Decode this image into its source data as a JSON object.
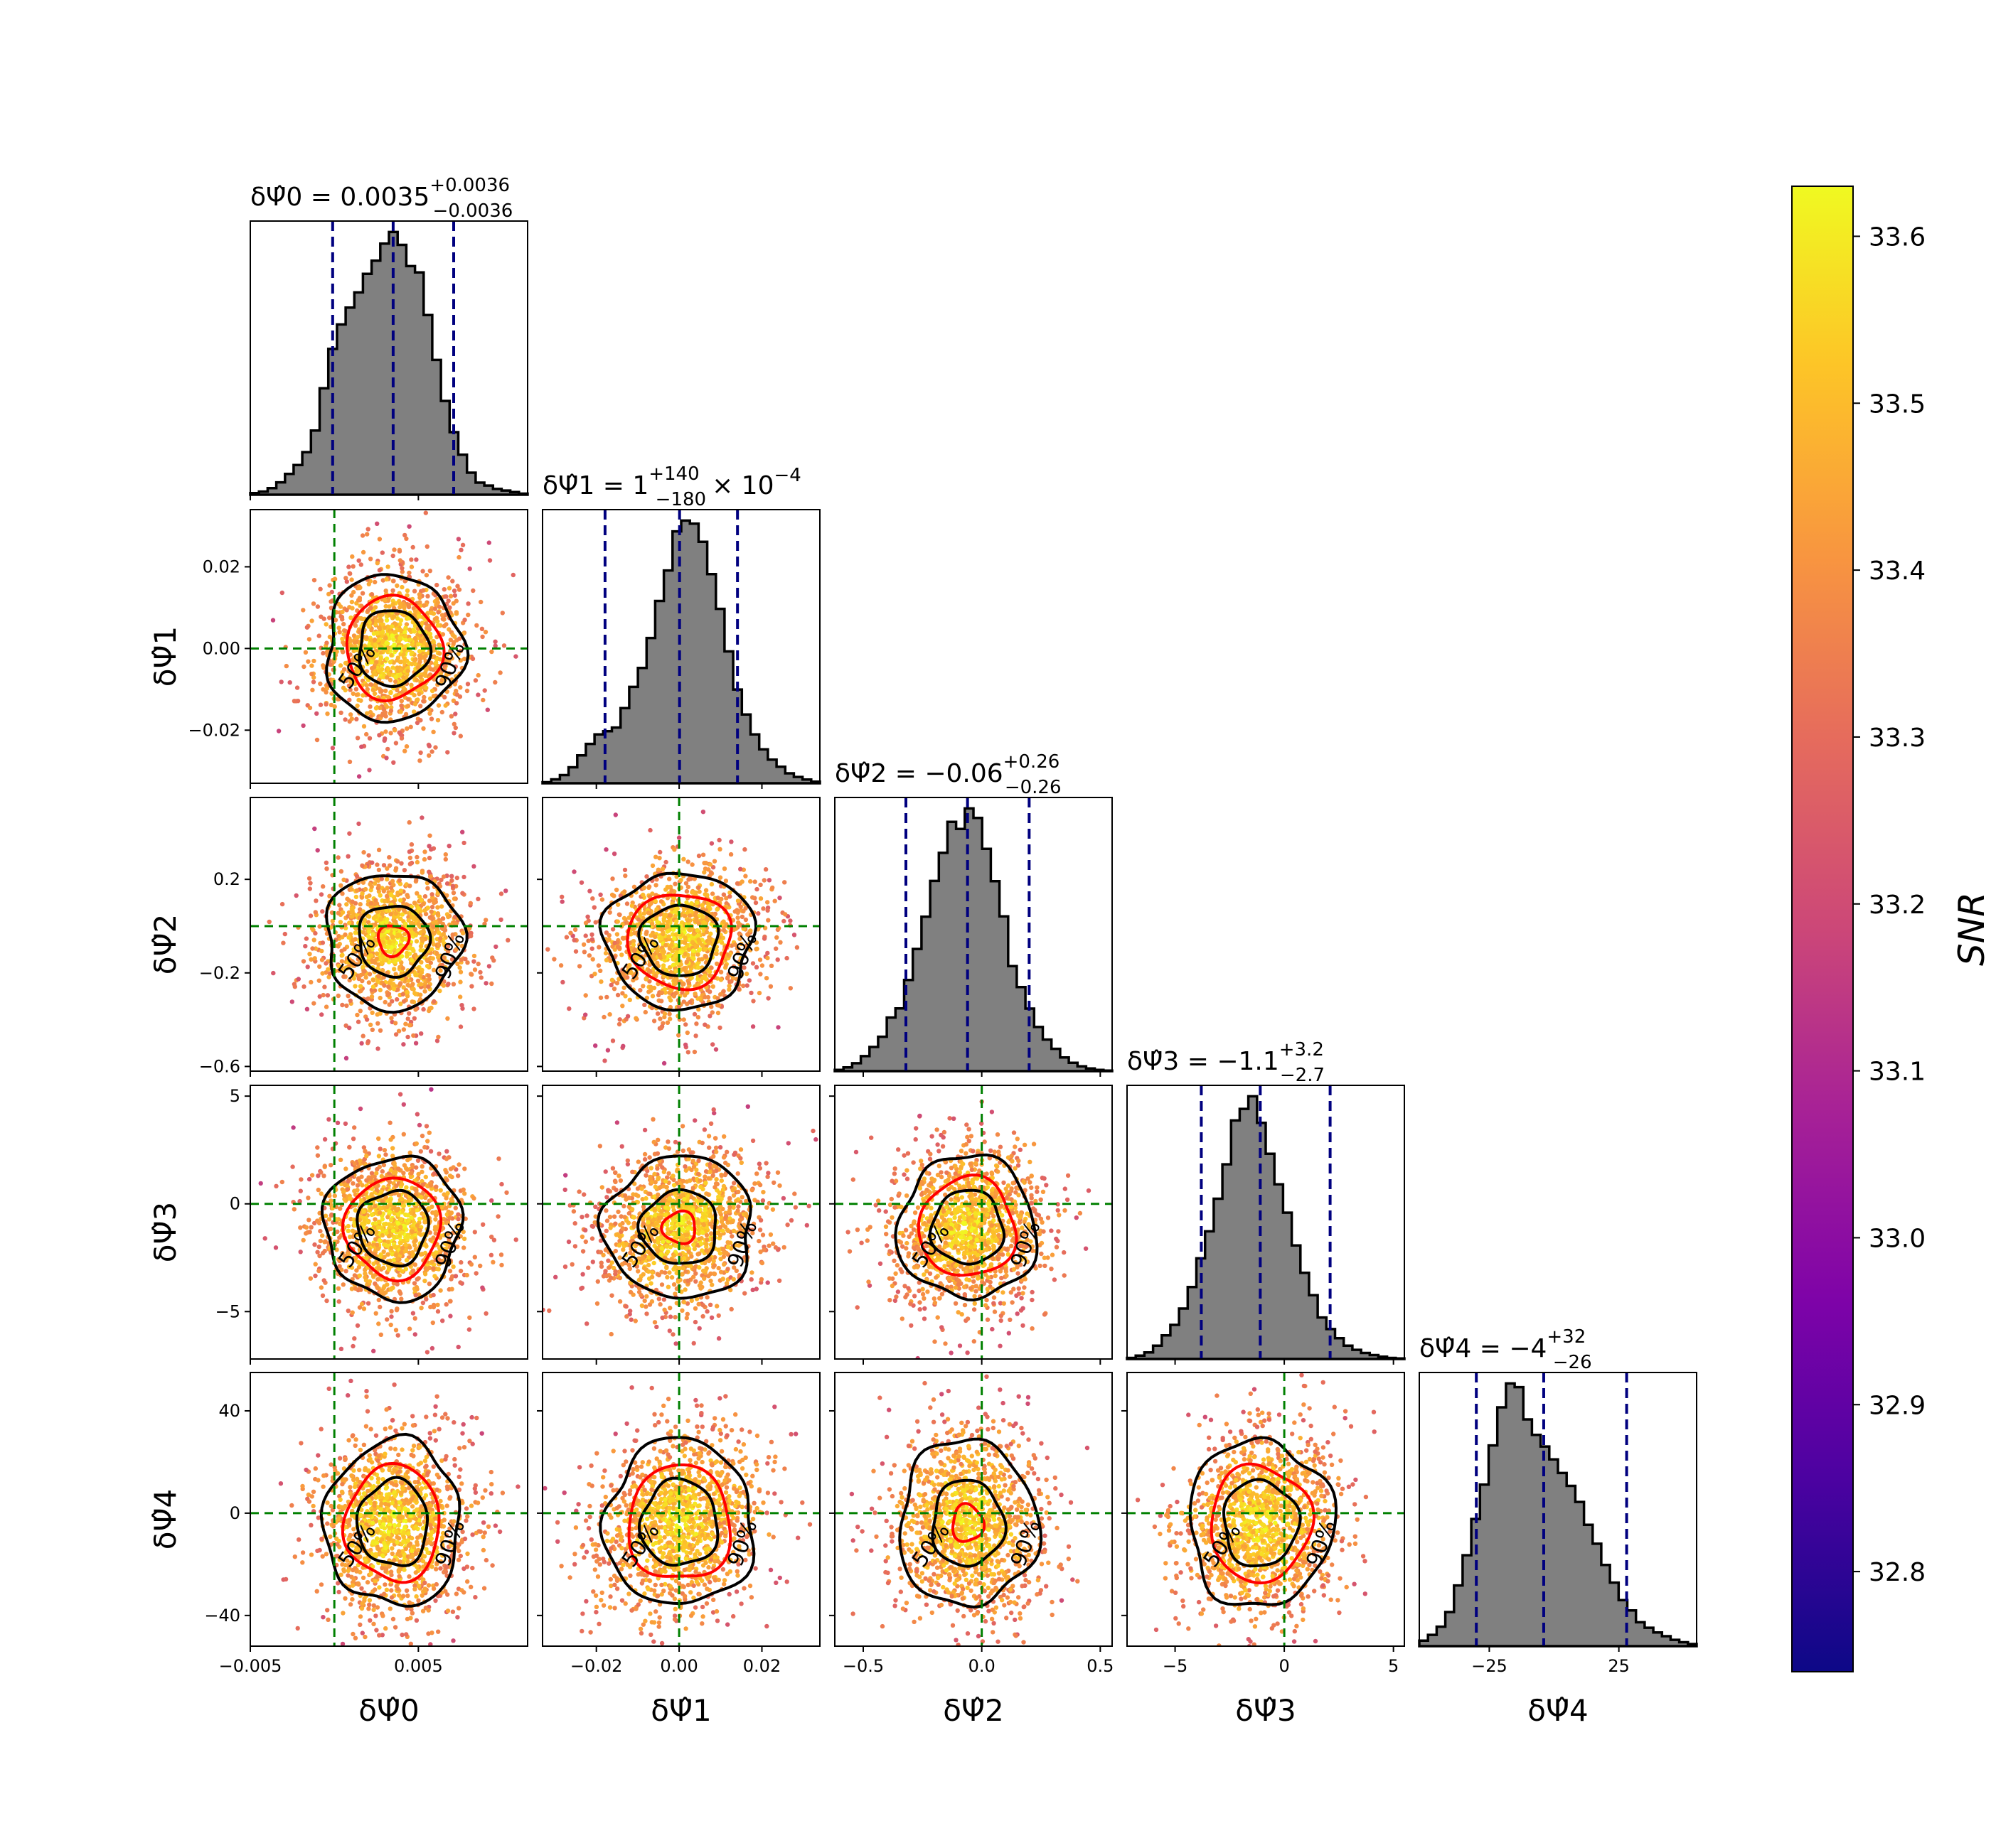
{
  "chart_data": {
    "type": "corner",
    "description_params": [
      "δΨ̂0",
      "δΨ̂1",
      "δΨ̂2",
      "δΨ̂3",
      "δΨ̂4"
    ],
    "params": [
      {
        "name": "δΨ̂0",
        "axis_label": "δΨ̂0",
        "title_main": "δΨ̂0 = 0.0035",
        "title_sup": "+0.0036",
        "title_sub": "−0.0036",
        "title_tail": "",
        "median": 0.0035,
        "plus": 0.0036,
        "minus": 0.0036,
        "range": [
          -0.005,
          0.0115
        ],
        "ticks": [
          -0.005,
          0.005
        ],
        "tick_labels": [
          "−0.005",
          "0.005"
        ],
        "injected": 0.0,
        "hist": [
          0.6,
          1.2,
          2.5,
          4.7,
          7.9,
          11.3,
          16.2,
          24.4,
          40.5,
          55.5,
          64.8,
          71.2,
          77.0,
          84.1,
          89.1,
          95.6,
          100,
          95.1,
          87.0,
          84.6,
          68.4,
          51.3,
          35.7,
          23.8,
          15.2,
          8.4,
          4.6,
          3.5,
          2.2,
          1.6,
          1.0,
          0.4
        ]
      },
      {
        "name": "δΨ̂1",
        "axis_label": "δΨ̂1",
        "title_main": "δΨ̂1 = 1",
        "title_sup": "+140",
        "title_sub": "−180",
        "title_tail": "× 10",
        "title_tail_sup": "−4",
        "median": 0.0001,
        "plus": 0.014,
        "minus": 0.018,
        "range": [
          -0.033,
          0.034
        ],
        "ticks": [
          -0.02,
          0.0,
          0.02
        ],
        "tick_labels": [
          "−0.02",
          "0.00",
          "0.02"
        ],
        "injected": 0.0,
        "hist": [
          0.4,
          1.5,
          3.1,
          6.1,
          10.6,
          15.0,
          18.6,
          19.8,
          21.2,
          28.6,
          36.7,
          43.9,
          55.3,
          69.4,
          81.0,
          95.9,
          100,
          98.8,
          91.9,
          79.6,
          66.4,
          50.2,
          35.7,
          26.2,
          18.6,
          12.9,
          9.0,
          6.3,
          3.8,
          2.4,
          1.4,
          0.6
        ]
      },
      {
        "name": "δΨ̂2",
        "axis_label": "δΨ̂2",
        "title_main": "δΨ̂2 = −0.06",
        "title_sup": "+0.26",
        "title_sub": "−0.26",
        "title_tail": "",
        "median": -0.06,
        "plus": 0.26,
        "minus": 0.26,
        "range": [
          -0.62,
          0.55
        ],
        "ticks": [
          -0.5,
          0.0,
          0.5
        ],
        "tick_labels": [
          "−0.5",
          "0.0",
          "0.5"
        ],
        "injected": 0.0,
        "hist": [
          0.5,
          1.4,
          3.0,
          5.7,
          9.2,
          13.1,
          20.4,
          23.9,
          34.7,
          46.5,
          58.8,
          72.4,
          83.1,
          94.9,
          92.2,
          100,
          96.4,
          84.6,
          72.3,
          58.9,
          40.0,
          32.0,
          23.8,
          16.8,
          12.0,
          8.5,
          5.2,
          3.2,
          1.8,
          1.0,
          0.5,
          0.2
        ]
      },
      {
        "name": "δΨ̂3",
        "axis_label": "δΨ̂3",
        "title_main": "δΨ̂3 = −1.1",
        "title_sup": "+3.2",
        "title_sub": "−2.7",
        "title_tail": "",
        "median": -1.1,
        "plus": 3.2,
        "minus": 2.7,
        "range": [
          -7.2,
          5.5
        ],
        "ticks": [
          -5,
          0,
          5
        ],
        "tick_labels": [
          "−5",
          "0",
          "5"
        ],
        "injected": 0.0,
        "hist": [
          0.4,
          1.3,
          2.5,
          5.1,
          9.0,
          13.0,
          19.2,
          27.4,
          38.3,
          48.6,
          61.0,
          74.1,
          90.8,
          95.2,
          100,
          89.9,
          78.1,
          66.5,
          55.7,
          43.2,
          32.8,
          24.3,
          15.8,
          11.4,
          7.9,
          5.1,
          3.5,
          2.3,
          1.5,
          0.9,
          0.4,
          0.2
        ]
      },
      {
        "name": "δΨ̂4",
        "axis_label": "δΨ̂4",
        "title_main": "δΨ̂4 = −4",
        "title_sup": "+32",
        "title_sub": "−26",
        "title_tail": "",
        "median": -4,
        "plus": 32,
        "minus": 26,
        "range": [
          -52,
          55
        ],
        "ticks": [
          -25,
          25
        ],
        "tick_labels": [
          "−25",
          "25"
        ],
        "injected": 0.0,
        "hist": [
          2.1,
          4.3,
          7.4,
          13.0,
          23.1,
          34.6,
          48.4,
          61.5,
          76.4,
          90.9,
          100,
          98.6,
          86.3,
          80.4,
          76.0,
          71.1,
          65.9,
          61.0,
          54.9,
          46.2,
          39.0,
          30.9,
          24.2,
          17.5,
          13.6,
          9.1,
          7.0,
          5.2,
          3.8,
          2.4,
          1.5,
          0.8
        ]
      }
    ],
    "row_ticks": [
      null,
      {
        "ticks": [
          -0.02,
          0.0,
          0.02
        ],
        "tick_labels": [
          "−0.02",
          "0.00",
          "0.02"
        ]
      },
      {
        "ticks": [
          -0.6,
          -0.2,
          0.2
        ],
        "tick_labels": [
          "−0.6",
          "−0.2",
          "0.2"
        ]
      },
      {
        "ticks": [
          -5,
          0,
          5
        ],
        "tick_labels": [
          "−5",
          "0",
          "5"
        ]
      },
      {
        "ticks": [
          -40,
          0,
          40
        ],
        "tick_labels": [
          "−40",
          "0",
          "40"
        ]
      }
    ],
    "contour_levels": [
      "50%",
      "90%"
    ],
    "colorbar": {
      "label": "SNR",
      "min": 32.74,
      "max": 33.63,
      "ticks": [
        32.8,
        32.9,
        33.0,
        33.1,
        33.2,
        33.3,
        33.4,
        33.5,
        33.6
      ],
      "tick_labels": [
        "32.8",
        "32.9",
        "33.0",
        "33.1",
        "33.2",
        "33.3",
        "33.4",
        "33.5",
        "33.6"
      ],
      "colormap": "plasma"
    },
    "colors": {
      "hist_fill": "#808080",
      "hist_edge": "#000000",
      "quantile_line": "#00007f",
      "injection_line": "#008000",
      "contour_50_red": "#ff0000",
      "contour_black": "#000000"
    }
  }
}
